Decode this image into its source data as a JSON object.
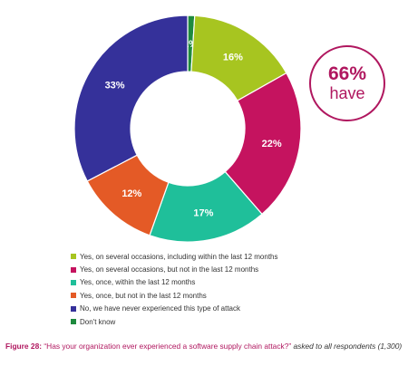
{
  "chart_data": {
    "type": "pie",
    "donut": true,
    "categories": [
      "Don't know",
      "Yes, on several occasions, including within the last 12 months",
      "Yes, on several occasions, but not in the last 12 months",
      "Yes, once, within the last 12 months",
      "Yes, once, but not in the last 12 months",
      "No, we have never experienced this type of attack"
    ],
    "values": [
      1,
      16,
      22,
      17,
      12,
      33
    ],
    "labels": [
      "1%",
      "16%",
      "22%",
      "17%",
      "12%",
      "33%"
    ],
    "colors": [
      "#1e8a3e",
      "#a7c520",
      "#c5135f",
      "#1fbf9a",
      "#e45a26",
      "#35319a"
    ],
    "label_colors": [
      "#ffffff",
      "#ffffff",
      "#ffffff",
      "#ffffff",
      "#ffffff",
      "#ffffff"
    ],
    "legend_placement": "bottom",
    "legend": [
      {
        "label": "Yes, on several occasions, including within the last 12 months",
        "color": "#a7c520"
      },
      {
        "label": "Yes, on several occasions, but not in the last 12 months",
        "color": "#c5135f"
      },
      {
        "label": "Yes, once, within the last 12 months",
        "color": "#1fbf9a"
      },
      {
        "label": "Yes, once, but not in the last 12 months",
        "color": "#e45a26"
      },
      {
        "label": "No, we have never experienced this type of attack",
        "color": "#35319a"
      },
      {
        "label": "Don't know",
        "color": "#1e8a3e"
      }
    ]
  },
  "callout": {
    "value": "66%",
    "text": "have",
    "color": "#b0175f"
  },
  "caption": {
    "figure": "Figure 28:",
    "question": "“Has your organization ever experienced a software supply chain attack?”",
    "note": "asked to all respondents (1,300)"
  }
}
